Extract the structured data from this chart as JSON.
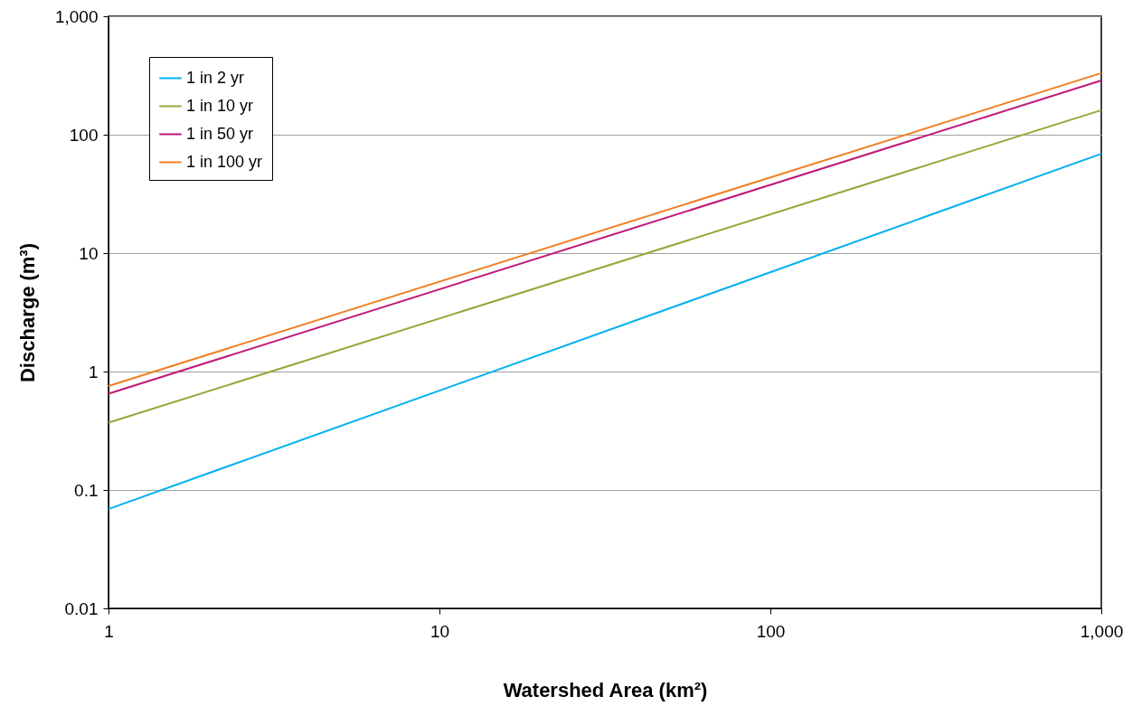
{
  "chart_data": {
    "type": "line",
    "xlabel": "Watershed Area (km²)",
    "ylabel": "Discharge (m³)",
    "log": "xy",
    "grid": "y",
    "legend": "top left",
    "xlim": [
      1,
      1000
    ],
    "xticks": [
      1,
      10,
      100,
      {
        "value": 1000,
        "label": "1,000"
      }
    ],
    "ylim": [
      0.01,
      1000
    ],
    "yticks": [
      0.01,
      0.1,
      1,
      10,
      100,
      {
        "value": 1000,
        "label": "1,000"
      }
    ],
    "x": [
      1,
      1000
    ],
    "series": [
      {
        "name": "1 in 2 yr",
        "color": "#00b0f0",
        "values": [
          0.069,
          69
        ]
      },
      {
        "name": "1 in 10 yr",
        "color": "#8faa3a",
        "values": [
          0.37,
          161
        ]
      },
      {
        "name": "1 in 50 yr",
        "color": "#c0187a",
        "values": [
          0.65,
          287
        ]
      },
      {
        "name": "1 in 100 yr",
        "color": "#f07f22",
        "values": [
          0.755,
          331
        ]
      }
    ]
  }
}
